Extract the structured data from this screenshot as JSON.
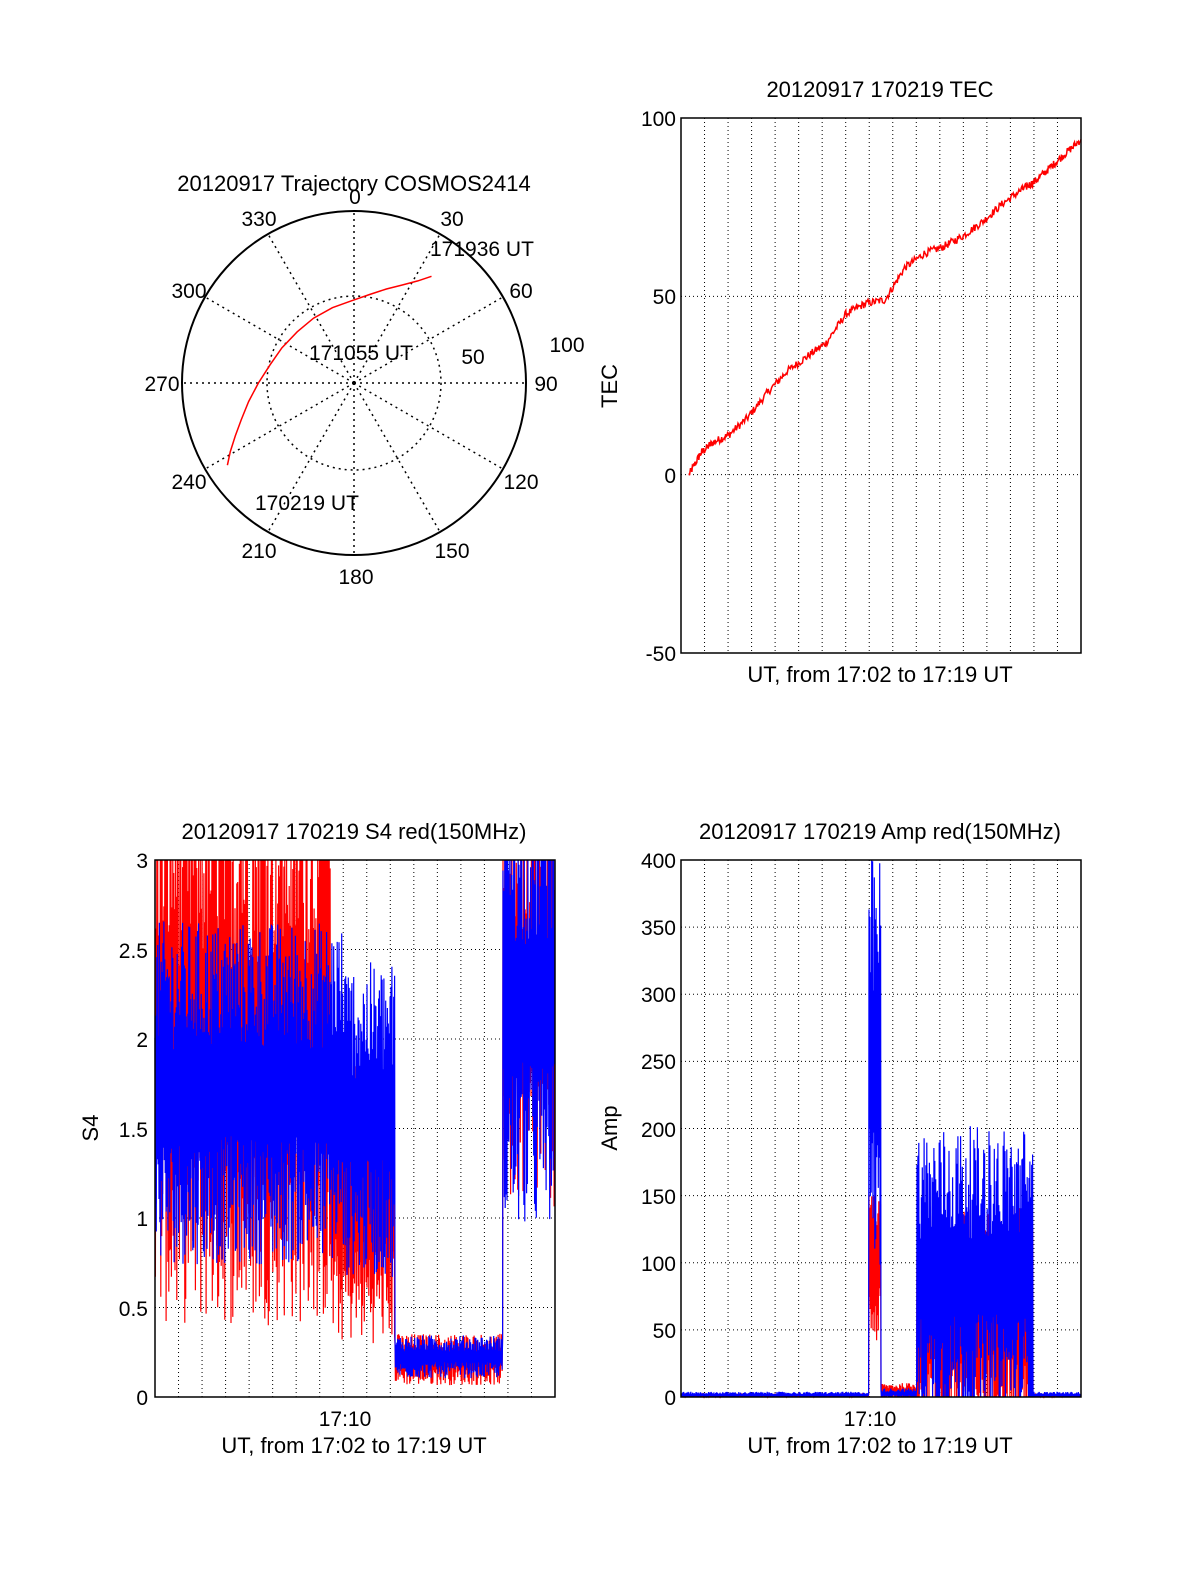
{
  "colors": {
    "red": "#ff0000",
    "blue": "#0000ff",
    "axis": "#000000",
    "grid": "#000000"
  },
  "chart_data": [
    {
      "type": "polar",
      "title": "20120917 Trajectory COSMOS2414",
      "azimuth_ticks": [
        "0",
        "30",
        "60",
        "90",
        "120",
        "150",
        "180",
        "210",
        "240",
        "270",
        "300",
        "330"
      ],
      "radial_ticks": [
        "50",
        "100"
      ],
      "grid": true,
      "series": [
        {
          "color": "red",
          "points": [
            {
              "az": 237,
              "el": 11
            },
            {
              "az": 241,
              "el": 16
            },
            {
              "az": 246,
              "el": 22
            },
            {
              "az": 252,
              "el": 28
            },
            {
              "az": 260,
              "el": 34
            },
            {
              "az": 270,
              "el": 40
            },
            {
              "az": 282,
              "el": 45
            },
            {
              "az": 296,
              "el": 48
            },
            {
              "az": 312,
              "el": 50
            },
            {
              "az": 328,
              "el": 50
            },
            {
              "az": 344,
              "el": 49
            },
            {
              "az": 358,
              "el": 47
            },
            {
              "az": 10,
              "el": 43
            },
            {
              "az": 19,
              "el": 38
            },
            {
              "az": 26,
              "el": 33
            },
            {
              "az": 32,
              "el": 27
            },
            {
              "az": 36,
              "el": 21
            }
          ]
        }
      ],
      "annotations": [
        "171936 UT",
        "171055 UT",
        "170219 UT"
      ]
    },
    {
      "type": "line",
      "title": "20120917 170219 TEC",
      "xlabel": "UT, from 17:02 to 17:19 UT",
      "ylabel": "TEC",
      "yticks": [
        "100",
        "50",
        "0",
        "-50"
      ],
      "ylim": [
        -50,
        100
      ],
      "xlim": [
        0,
        1
      ],
      "grid": true,
      "series": [
        {
          "color": "red",
          "x": [
            0.0,
            0.03,
            0.06,
            0.1,
            0.15,
            0.2,
            0.25,
            0.3,
            0.35,
            0.4,
            0.45,
            0.5,
            0.55,
            0.6,
            0.65,
            0.7,
            0.75,
            0.8,
            0.85,
            0.88,
            0.92,
            0.96,
            1.0
          ],
          "y": [
            0,
            6,
            9,
            11,
            16,
            23,
            29,
            33,
            37,
            45,
            48,
            49,
            58,
            62,
            64,
            67,
            71,
            76,
            80,
            82,
            86,
            90,
            94
          ]
        }
      ]
    },
    {
      "type": "line",
      "title": "20120917 170219 S4 red(150MHz)",
      "xlabel": "UT, from 17:02 to 17:19 UT",
      "ylabel": "S4",
      "xticks": [
        "17:10"
      ],
      "yticks": [
        "3",
        "2.5",
        "2",
        "1.5",
        "1",
        "0.5",
        "0"
      ],
      "ylim": [
        0,
        3
      ],
      "xlim": [
        0,
        1
      ],
      "grid": true,
      "series": [
        {
          "color": "red",
          "segments": [
            {
              "x0": 0.0,
              "x1": 0.44,
              "lo": 1.0,
              "hi": 3.0
            },
            {
              "x0": 0.44,
              "x1": 0.6,
              "lo": 0.6,
              "hi": 1.6
            },
            {
              "x0": 0.6,
              "x1": 0.87,
              "lo": 0.12,
              "hi": 0.3
            },
            {
              "x0": 0.87,
              "x1": 1.0,
              "lo": 1.5,
              "hi": 3.0
            }
          ]
        },
        {
          "color": "blue",
          "segments": [
            {
              "x0": 0.0,
              "x1": 0.47,
              "lo": 1.1,
              "hi": 2.3
            },
            {
              "x0": 0.47,
              "x1": 0.6,
              "lo": 1.0,
              "hi": 2.1
            },
            {
              "x0": 0.6,
              "x1": 0.87,
              "lo": 0.15,
              "hi": 0.3
            },
            {
              "x0": 0.87,
              "x1": 1.0,
              "lo": 1.4,
              "hi": 3.0
            }
          ]
        }
      ]
    },
    {
      "type": "line",
      "title": "20120917 170219 Amp red(150MHz)",
      "xlabel": "UT, from 17:02 to 17:19 UT",
      "ylabel": "Amp",
      "xticks": [
        "17:10"
      ],
      "yticks": [
        "400",
        "350",
        "300",
        "250",
        "200",
        "150",
        "100",
        "50",
        "0"
      ],
      "ylim": [
        0,
        400
      ],
      "xlim": [
        0,
        1
      ],
      "grid": true,
      "series": [
        {
          "color": "red",
          "segments": [
            {
              "x0": 0.0,
              "x1": 0.47,
              "lo": 0,
              "hi": 2
            },
            {
              "x0": 0.47,
              "x1": 0.5,
              "lo": 60,
              "hi": 130
            },
            {
              "x0": 0.5,
              "x1": 0.59,
              "lo": 0,
              "hi": 8
            },
            {
              "x0": 0.59,
              "x1": 0.88,
              "lo": 5,
              "hi": 110
            },
            {
              "x0": 0.88,
              "x1": 1.0,
              "lo": 0,
              "hi": 2
            }
          ]
        },
        {
          "color": "blue",
          "segments": [
            {
              "x0": 0.0,
              "x1": 0.47,
              "lo": 0,
              "hi": 3
            },
            {
              "x0": 0.47,
              "x1": 0.5,
              "lo": 150,
              "hi": 345
            },
            {
              "x0": 0.5,
              "x1": 0.59,
              "lo": 0,
              "hi": 5
            },
            {
              "x0": 0.59,
              "x1": 0.88,
              "lo": 20,
              "hi": 160
            },
            {
              "x0": 0.88,
              "x1": 1.0,
              "lo": 0,
              "hi": 3
            }
          ]
        }
      ]
    }
  ]
}
